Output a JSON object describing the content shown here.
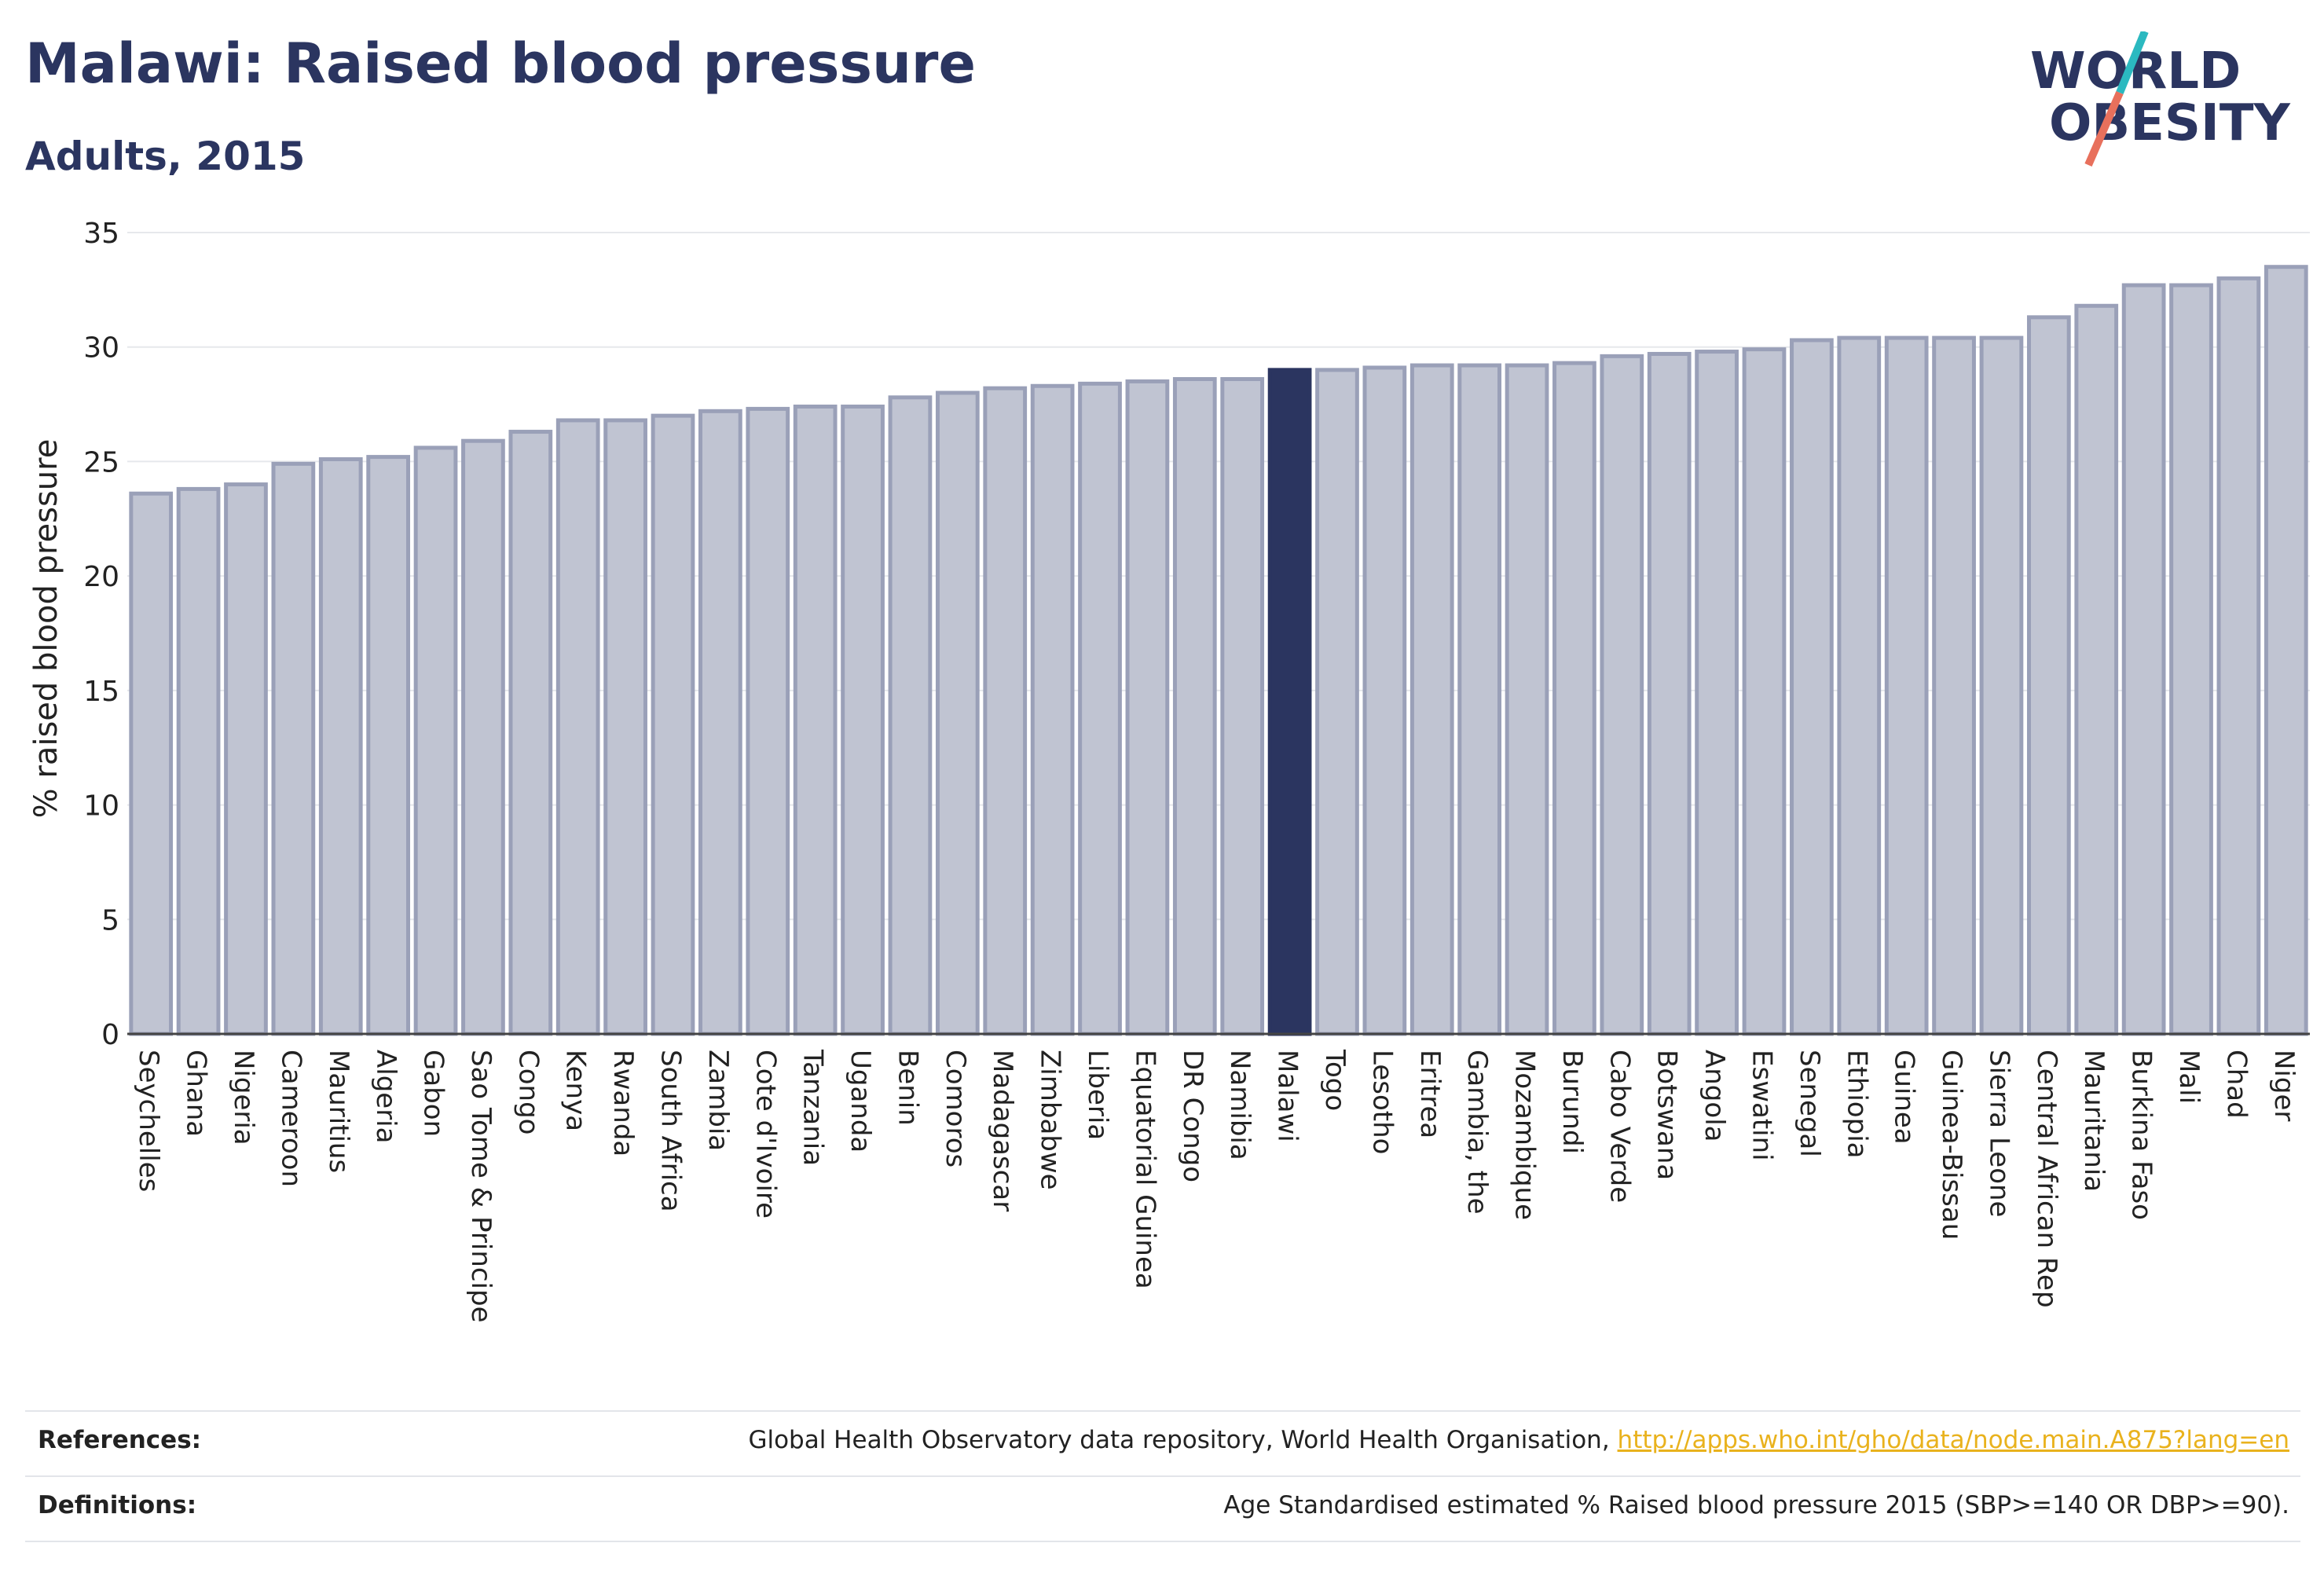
{
  "header": {
    "title": "Malawi: Raised blood pressure",
    "subtitle": "Adults, 2015"
  },
  "logo": {
    "line1": "WORLD",
    "line2": "OBESITY",
    "colors": {
      "text": "#2b3560",
      "slash_teal": "#2bb9c0",
      "slash_coral": "#e8705c"
    }
  },
  "chart_data": {
    "type": "bar",
    "ylabel": "% raised blood pressure",
    "ylim": [
      0,
      35
    ],
    "yticks": [
      0,
      5,
      10,
      15,
      20,
      25,
      30,
      35
    ],
    "grid": true,
    "highlight": "Malawi",
    "colors": {
      "bar": "#c0c4d2",
      "bar_border": "#9aa0b8",
      "highlight": "#2b3560"
    },
    "categories": [
      "Seychelles",
      "Ghana",
      "Nigeria",
      "Cameroon",
      "Mauritius",
      "Algeria",
      "Gabon",
      "Sao Tome & Principe",
      "Congo",
      "Kenya",
      "Rwanda",
      "South Africa",
      "Zambia",
      "Cote d'Ivoire",
      "Tanzania",
      "Uganda",
      "Benin",
      "Comoros",
      "Madagascar",
      "Zimbabwe",
      "Liberia",
      "Equatorial Guinea",
      "DR Congo",
      "Namibia",
      "Malawi",
      "Togo",
      "Lesotho",
      "Eritrea",
      "Gambia, the",
      "Mozambique",
      "Burundi",
      "Cabo Verde",
      "Botswana",
      "Angola",
      "Eswatini",
      "Senegal",
      "Ethiopia",
      "Guinea",
      "Guinea-Bissau",
      "Sierra Leone",
      "Central African Rep",
      "Mauritania",
      "Burkina Faso",
      "Mali",
      "Chad",
      "Niger"
    ],
    "values": [
      23.6,
      23.8,
      24.0,
      24.9,
      25.1,
      25.2,
      25.6,
      25.9,
      26.3,
      26.8,
      26.8,
      27.0,
      27.2,
      27.3,
      27.4,
      27.4,
      27.8,
      28.0,
      28.2,
      28.3,
      28.4,
      28.5,
      28.6,
      28.6,
      29.0,
      29.0,
      29.1,
      29.2,
      29.2,
      29.2,
      29.3,
      29.6,
      29.7,
      29.8,
      29.9,
      30.3,
      30.4,
      30.4,
      30.4,
      30.4,
      31.3,
      31.8,
      32.7,
      32.7,
      33.0,
      33.5
    ]
  },
  "footer": {
    "references_label": "References:",
    "references_text": "Global Health Observatory data repository, World Health Organisation, ",
    "references_link": "http://apps.who.int/gho/data/node.main.A875?lang=en",
    "definitions_label": "Definitions:",
    "definitions_text": "Age Standardised estimated % Raised blood pressure 2015 (SBP>=140 OR DBP>=90)."
  }
}
